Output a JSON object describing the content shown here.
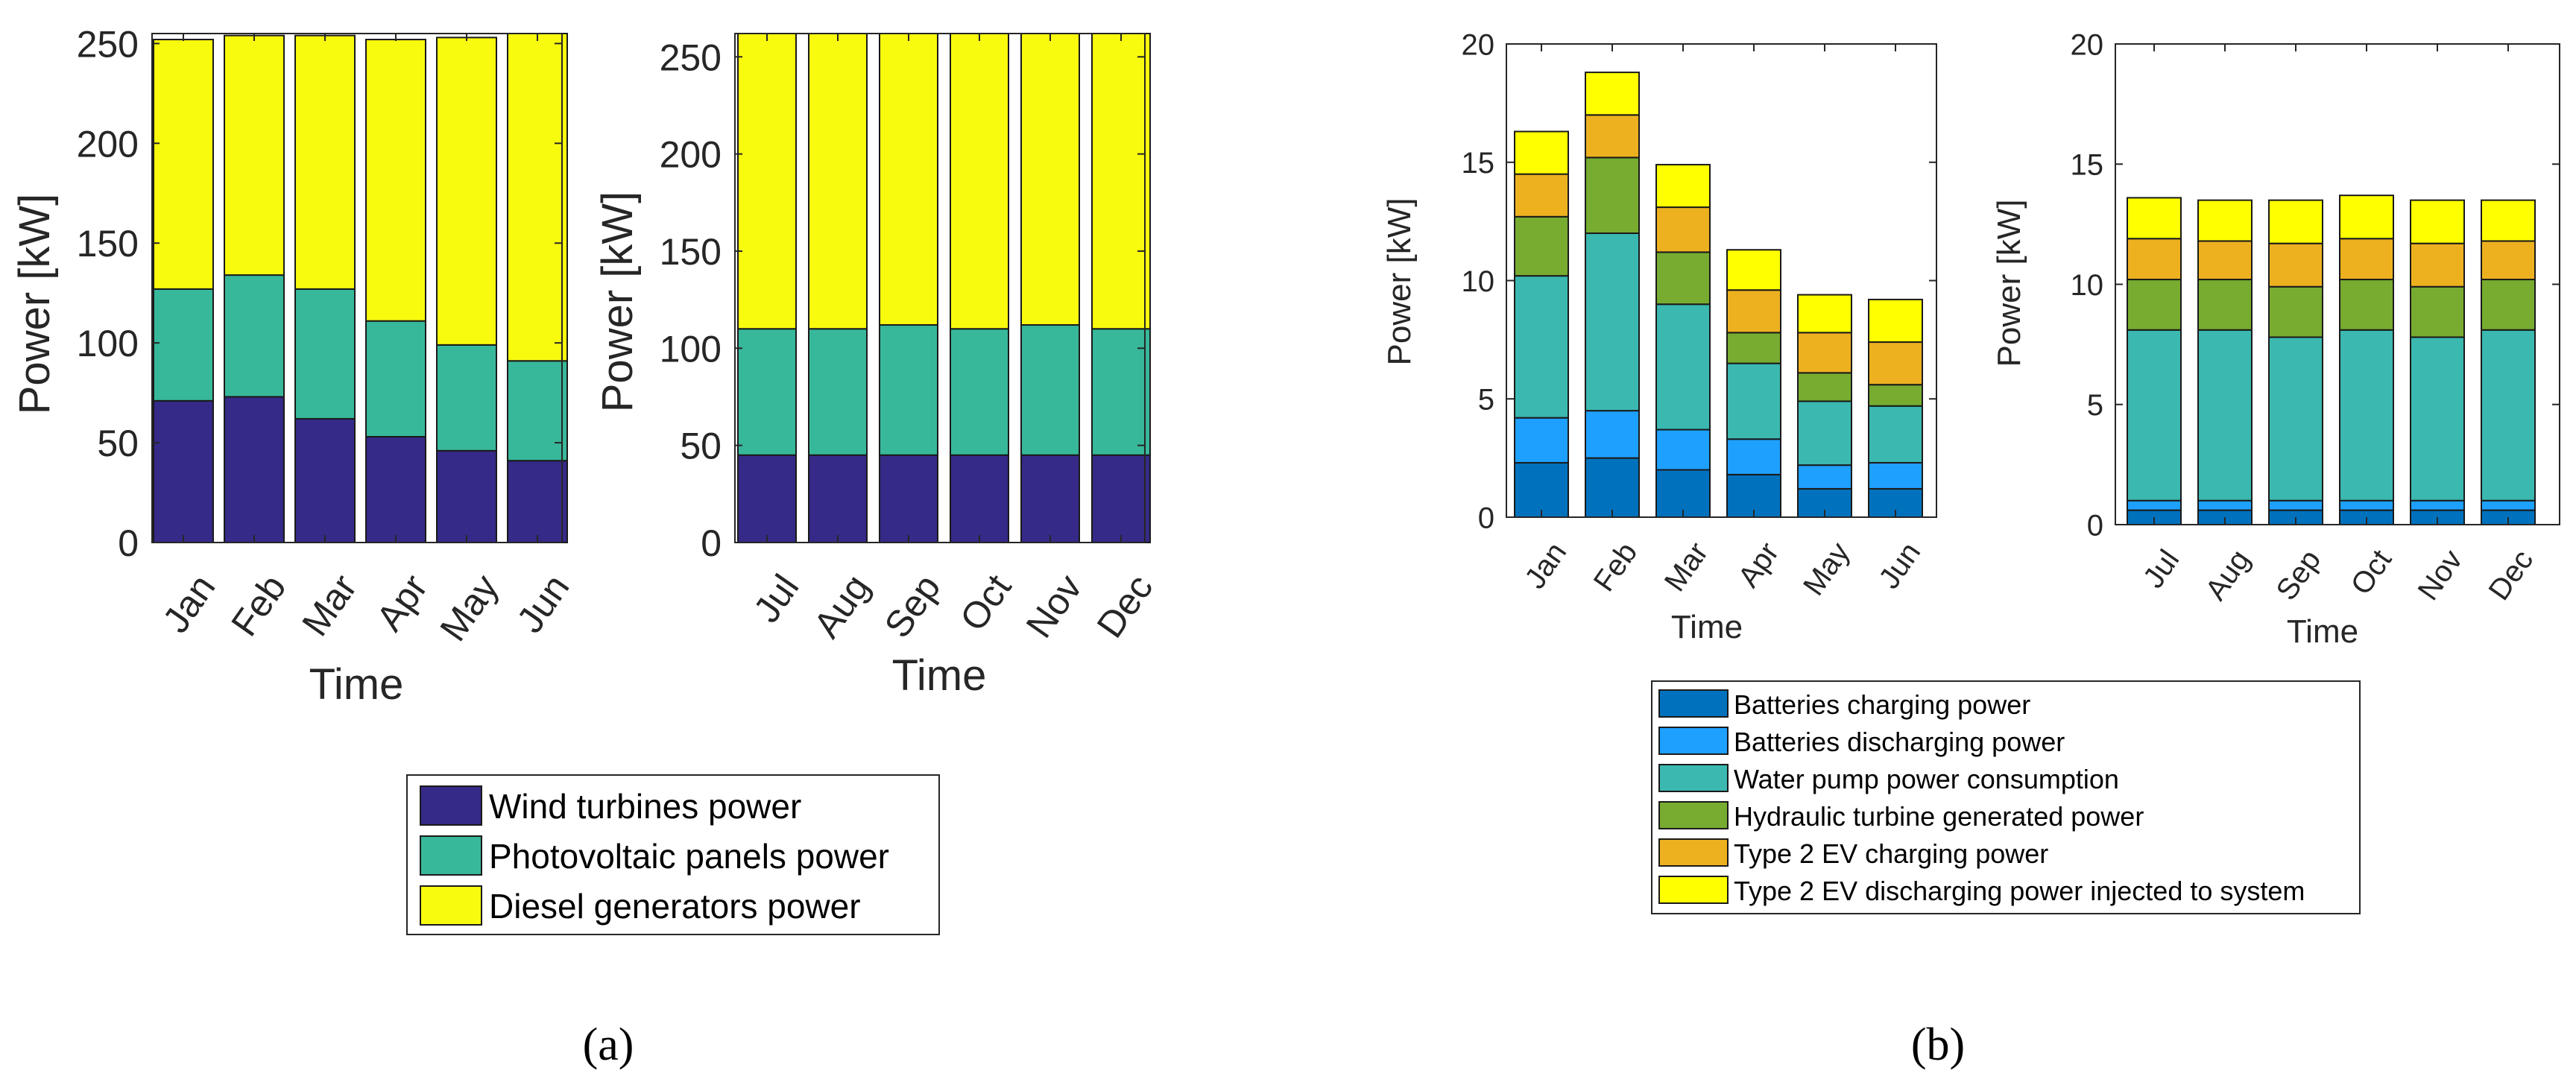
{
  "figure": {
    "panel_labels": [
      "(a)",
      "(b)"
    ]
  },
  "legends": {
    "a": {
      "entries": [
        {
          "label": "Wind turbines power",
          "color": "#352a87"
        },
        {
          "label": "Photovoltaic panels power",
          "color": "#38b89a"
        },
        {
          "label": "Diesel generators power",
          "color": "#f9fb0e"
        }
      ]
    },
    "b": {
      "entries": [
        {
          "label": "Batteries charging power",
          "color": "#0072bd"
        },
        {
          "label": "Batteries discharging power",
          "color": "#1ea0ff"
        },
        {
          "label": "Water pump power consumption",
          "color": "#3bb8b0"
        },
        {
          "label": "Hydraulic turbine generated power",
          "color": "#77ac30"
        },
        {
          "label": "Type 2 EV charging power",
          "color": "#edb120"
        },
        {
          "label": "Type 2 EV discharging power injected to system",
          "color": "#ffff00"
        }
      ]
    }
  },
  "chart_data": [
    {
      "id": "a-left",
      "type": "bar",
      "stacked": true,
      "xlabel": "Time",
      "ylabel": "Power [kW]",
      "ylim": [
        0,
        255
      ],
      "yticks": [
        0,
        50,
        100,
        150,
        200,
        250
      ],
      "categories": [
        "Jan",
        "Feb",
        "Mar",
        "Apr",
        "May",
        "Jun"
      ],
      "series": [
        {
          "legend": "a",
          "values": [
            71,
            73,
            62,
            53,
            46,
            41
          ]
        },
        {
          "legend": "a",
          "values": [
            56,
            61,
            65,
            58,
            53,
            50
          ]
        },
        {
          "legend": "a",
          "values": [
            125,
            120,
            127,
            141,
            154,
            164
          ]
        }
      ]
    },
    {
      "id": "a-right",
      "type": "bar",
      "stacked": true,
      "xlabel": "Time",
      "ylabel": "Power [kW]",
      "ylim": [
        0,
        262
      ],
      "yticks": [
        0,
        50,
        100,
        150,
        200,
        250
      ],
      "categories": [
        "Jul",
        "Aug",
        "Sep",
        "Oct",
        "Nov",
        "Dec"
      ],
      "series": [
        {
          "legend": "a",
          "values": [
            45,
            45,
            45,
            45,
            45,
            45
          ]
        },
        {
          "legend": "a",
          "values": [
            65,
            65,
            67,
            65,
            67,
            65
          ]
        },
        {
          "legend": "a",
          "values": [
            152,
            152,
            150,
            152,
            150,
            152
          ]
        }
      ]
    },
    {
      "id": "b-left",
      "type": "bar",
      "stacked": true,
      "xlabel": "Time",
      "ylabel": "Power [kW]",
      "ylim": [
        0,
        20
      ],
      "yticks": [
        0,
        5,
        10,
        15,
        20
      ],
      "categories": [
        "Jan",
        "Feb",
        "Mar",
        "Apr",
        "May",
        "Jun"
      ],
      "series": [
        {
          "legend": "b",
          "values": [
            2.3,
            2.5,
            2.0,
            1.8,
            1.2,
            1.2
          ]
        },
        {
          "legend": "b",
          "values": [
            1.9,
            2.0,
            1.7,
            1.5,
            1.0,
            1.1
          ]
        },
        {
          "legend": "b",
          "values": [
            6.0,
            7.5,
            5.3,
            3.2,
            2.7,
            2.4
          ]
        },
        {
          "legend": "b",
          "values": [
            2.5,
            3.2,
            2.2,
            1.3,
            1.2,
            0.9
          ]
        },
        {
          "legend": "b",
          "values": [
            1.8,
            1.8,
            1.9,
            1.8,
            1.7,
            1.8
          ]
        },
        {
          "legend": "b",
          "values": [
            1.8,
            1.8,
            1.8,
            1.7,
            1.6,
            1.8
          ]
        }
      ]
    },
    {
      "id": "b-right",
      "type": "bar",
      "stacked": true,
      "xlabel": "Time",
      "ylabel": "Power [kW]",
      "ylim": [
        0,
        20
      ],
      "yticks": [
        0,
        5,
        10,
        15,
        20
      ],
      "categories": [
        "Jul",
        "Aug",
        "Sep",
        "Oct",
        "Nov",
        "Dec"
      ],
      "series": [
        {
          "legend": "b",
          "values": [
            0.6,
            0.6,
            0.6,
            0.6,
            0.6,
            0.6
          ]
        },
        {
          "legend": "b",
          "values": [
            0.4,
            0.4,
            0.4,
            0.4,
            0.4,
            0.4
          ]
        },
        {
          "legend": "b",
          "values": [
            7.1,
            7.1,
            6.8,
            7.1,
            6.8,
            7.1
          ]
        },
        {
          "legend": "b",
          "values": [
            2.1,
            2.1,
            2.1,
            2.1,
            2.1,
            2.1
          ]
        },
        {
          "legend": "b",
          "values": [
            1.7,
            1.6,
            1.8,
            1.7,
            1.8,
            1.6
          ]
        },
        {
          "legend": "b",
          "values": [
            1.7,
            1.7,
            1.8,
            1.8,
            1.8,
            1.7
          ]
        }
      ]
    }
  ]
}
